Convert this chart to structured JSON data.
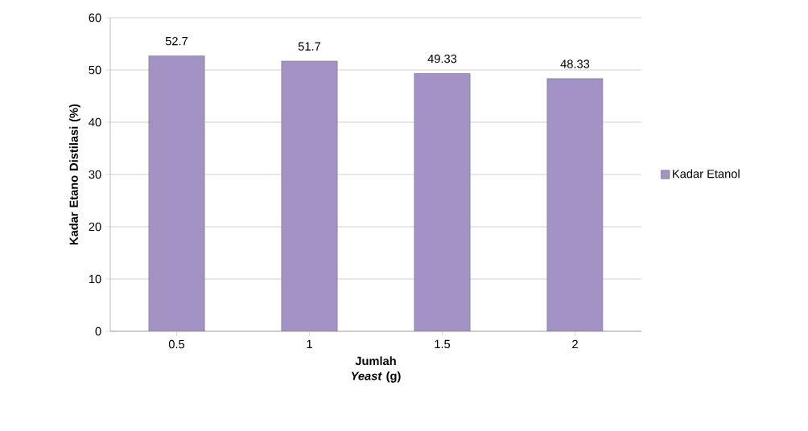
{
  "chart_data": {
    "type": "bar",
    "categories": [
      "0.5",
      "1",
      "1.5",
      "2"
    ],
    "series": [
      {
        "name": "Kadar Etanol",
        "color": "#a393c4",
        "values": [
          52.7,
          51.7,
          49.33,
          48.33
        ]
      }
    ],
    "xlabel": "Jumlah *Yeast* (g)",
    "ylabel": "Kadar Etano Distilasi (%)",
    "ylim": [
      0,
      60
    ],
    "yticks": [
      0,
      10,
      20,
      30,
      40,
      50,
      60
    ],
    "grid": "y",
    "legend": "right",
    "data_labels": true
  }
}
